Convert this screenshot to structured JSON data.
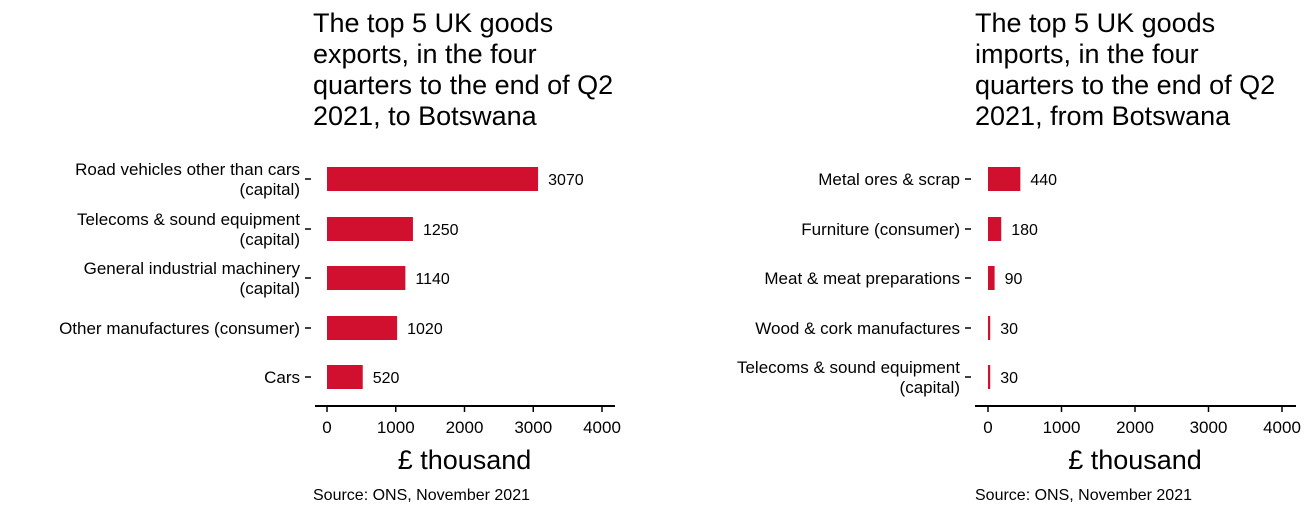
{
  "chart_data": [
    {
      "type": "bar",
      "orientation": "horizontal",
      "title_lines": [
        "The top 5 UK goods",
        "exports, in the four",
        "quarters to the end of Q2",
        "2021, to Botswana"
      ],
      "categories": [
        [
          "Road vehicles other than cars",
          "(capital)"
        ],
        [
          "Telecoms & sound equipment",
          "(capital)"
        ],
        [
          "General industrial machinery",
          "(capital)"
        ],
        [
          "Other manufactures (consumer)"
        ],
        [
          "Cars"
        ]
      ],
      "values": [
        3070,
        1250,
        1140,
        1020,
        520
      ],
      "xlabel": "£ thousand",
      "xlim": [
        0,
        4000
      ],
      "xticks": [
        0,
        1000,
        2000,
        3000,
        4000
      ],
      "source": "Source: ONS, November 2021",
      "bar_color": "#d0102e",
      "grid": false
    },
    {
      "type": "bar",
      "orientation": "horizontal",
      "title_lines": [
        "The top 5 UK goods",
        "imports, in the four",
        "quarters to the end of Q2",
        "2021, from Botswana"
      ],
      "categories": [
        [
          "Metal ores & scrap"
        ],
        [
          "Furniture (consumer)"
        ],
        [
          "Meat & meat preparations"
        ],
        [
          "Wood & cork manufactures"
        ],
        [
          "Telecoms & sound equipment",
          "(capital)"
        ]
      ],
      "values": [
        440,
        180,
        90,
        30,
        30
      ],
      "xlabel": "£ thousand",
      "xlim": [
        0,
        4000
      ],
      "xticks": [
        0,
        1000,
        2000,
        3000,
        4000
      ],
      "source": "Source: ONS, November 2021",
      "bar_color": "#d0102e",
      "grid": false
    }
  ]
}
